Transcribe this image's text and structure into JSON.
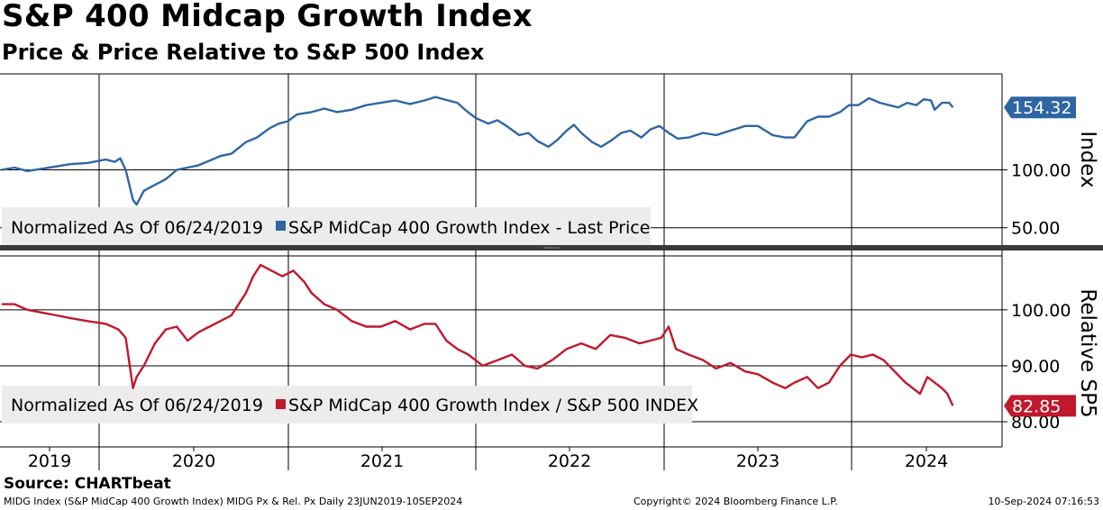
{
  "header": {
    "title": "S&P 400 Midcap Growth Index",
    "subtitle": "Price & Price Relative to S&P 500 Index"
  },
  "footer": {
    "source": "Source: CHARTbeat",
    "description": "MIDG Index (S&P MidCap 400 Growth Index) MIDG Px & Rel. Px  Daily 23JUN2019-10SEP2024",
    "copyright": "Copyright© 2024 Bloomberg Finance L.P.",
    "timestamp": "10-Sep-2024 07:16:53"
  },
  "colors": {
    "price": "#2e66a4",
    "relative": "#c0192c",
    "grid": "#000000",
    "legend_bg": "#ececec"
  },
  "chart_data": [
    {
      "type": "line",
      "title": "S&P 400 Midcap Growth Index",
      "ylabel": "Index",
      "legend_note": "Normalized As Of 06/24/2019",
      "last_value_label": "154.32",
      "ylim": [
        35,
        183
      ],
      "yticks": [
        50,
        100
      ],
      "ytick_labels": [
        "50.00",
        "100.00"
      ],
      "x_tick_labels": [
        "2019",
        "2020",
        "2021",
        "2022",
        "2023",
        "2024"
      ],
      "xlim": [
        2019.47,
        2024.97
      ],
      "series": [
        {
          "name": "S&P MidCap 400 Growth Index - Last Price",
          "points": [
            [
              2019.48,
              100
            ],
            [
              2019.55,
              102
            ],
            [
              2019.62,
              99
            ],
            [
              2019.7,
              101
            ],
            [
              2019.78,
              103
            ],
            [
              2019.86,
              105
            ],
            [
              2019.95,
              106
            ],
            [
              2020.05,
              109
            ],
            [
              2020.1,
              107
            ],
            [
              2020.13,
              110
            ],
            [
              2020.16,
              100
            ],
            [
              2020.2,
              74
            ],
            [
              2020.22,
              70
            ],
            [
              2020.26,
              82
            ],
            [
              2020.32,
              87
            ],
            [
              2020.38,
              92
            ],
            [
              2020.44,
              100
            ],
            [
              2020.5,
              102
            ],
            [
              2020.56,
              104
            ],
            [
              2020.62,
              108
            ],
            [
              2020.68,
              112
            ],
            [
              2020.74,
              114
            ],
            [
              2020.82,
              124
            ],
            [
              2020.88,
              128
            ],
            [
              2020.95,
              136
            ],
            [
              2021.0,
              140
            ],
            [
              2021.05,
              142
            ],
            [
              2021.1,
              148
            ],
            [
              2021.18,
              150
            ],
            [
              2021.25,
              153
            ],
            [
              2021.32,
              150
            ],
            [
              2021.4,
              152
            ],
            [
              2021.48,
              156
            ],
            [
              2021.56,
              158
            ],
            [
              2021.64,
              160
            ],
            [
              2021.72,
              157
            ],
            [
              2021.8,
              160
            ],
            [
              2021.86,
              163
            ],
            [
              2021.93,
              160
            ],
            [
              2021.98,
              158
            ],
            [
              2022.03,
              151
            ],
            [
              2022.08,
              145
            ],
            [
              2022.15,
              140
            ],
            [
              2022.2,
              143
            ],
            [
              2022.25,
              138
            ],
            [
              2022.32,
              130
            ],
            [
              2022.37,
              132
            ],
            [
              2022.42,
              125
            ],
            [
              2022.48,
              120
            ],
            [
              2022.53,
              126
            ],
            [
              2022.58,
              134
            ],
            [
              2022.62,
              139
            ],
            [
              2022.66,
              132
            ],
            [
              2022.72,
              124
            ],
            [
              2022.77,
              120
            ],
            [
              2022.83,
              126
            ],
            [
              2022.88,
              132
            ],
            [
              2022.93,
              134
            ],
            [
              2022.99,
              128
            ],
            [
              2023.04,
              135
            ],
            [
              2023.09,
              138
            ],
            [
              2023.14,
              132
            ],
            [
              2023.19,
              127
            ],
            [
              2023.25,
              128
            ],
            [
              2023.33,
              132
            ],
            [
              2023.4,
              130
            ],
            [
              2023.48,
              134
            ],
            [
              2023.56,
              138
            ],
            [
              2023.63,
              138
            ],
            [
              2023.71,
              130
            ],
            [
              2023.78,
              128
            ],
            [
              2023.83,
              128
            ],
            [
              2023.9,
              142
            ],
            [
              2023.96,
              146
            ],
            [
              2024.02,
              146
            ],
            [
              2024.08,
              150
            ],
            [
              2024.13,
              156
            ],
            [
              2024.18,
              156
            ],
            [
              2024.24,
              162
            ],
            [
              2024.3,
              158
            ],
            [
              2024.35,
              156
            ],
            [
              2024.4,
              154
            ],
            [
              2024.45,
              158
            ],
            [
              2024.5,
              156
            ],
            [
              2024.54,
              161
            ],
            [
              2024.58,
              160
            ],
            [
              2024.6,
              152
            ],
            [
              2024.64,
              158
            ],
            [
              2024.68,
              158
            ],
            [
              2024.7,
              154
            ]
          ]
        }
      ]
    },
    {
      "type": "line",
      "title": "Price Relative to S&P 500 Index",
      "ylabel": "Relative SP5",
      "legend_note": "Normalized As Of 06/24/2019",
      "last_value_label": "82.85",
      "ylim": [
        75.5,
        110.6
      ],
      "yticks": [
        80,
        90,
        100
      ],
      "ytick_labels": [
        "80.00",
        "90.00",
        "100.00"
      ],
      "x_tick_labels": [
        "2019",
        "2020",
        "2021",
        "2022",
        "2023",
        "2024"
      ],
      "xlim": [
        2019.47,
        2024.97
      ],
      "series": [
        {
          "name": "S&P MidCap 400 Growth Index / S&P 500 INDEX",
          "points": [
            [
              2019.48,
              101
            ],
            [
              2019.55,
              101
            ],
            [
              2019.62,
              100
            ],
            [
              2019.7,
              99.5
            ],
            [
              2019.78,
              99
            ],
            [
              2019.86,
              98.5
            ],
            [
              2019.95,
              98
            ],
            [
              2020.05,
              97.5
            ],
            [
              2020.12,
              96.5
            ],
            [
              2020.16,
              95
            ],
            [
              2020.2,
              86
            ],
            [
              2020.22,
              88
            ],
            [
              2020.26,
              90
            ],
            [
              2020.32,
              94
            ],
            [
              2020.38,
              96.5
            ],
            [
              2020.44,
              97
            ],
            [
              2020.5,
              94.5
            ],
            [
              2020.56,
              96
            ],
            [
              2020.62,
              97
            ],
            [
              2020.68,
              98
            ],
            [
              2020.74,
              99
            ],
            [
              2020.82,
              103
            ],
            [
              2020.86,
              106
            ],
            [
              2020.9,
              108
            ],
            [
              2020.96,
              107
            ],
            [
              2021.02,
              106
            ],
            [
              2021.08,
              107
            ],
            [
              2021.14,
              105
            ],
            [
              2021.18,
              103
            ],
            [
              2021.25,
              101
            ],
            [
              2021.32,
              100
            ],
            [
              2021.4,
              98
            ],
            [
              2021.48,
              97
            ],
            [
              2021.56,
              97
            ],
            [
              2021.64,
              98
            ],
            [
              2021.72,
              96.5
            ],
            [
              2021.8,
              97.5
            ],
            [
              2021.86,
              97.5
            ],
            [
              2021.92,
              94.5
            ],
            [
              2021.98,
              93
            ],
            [
              2022.04,
              92
            ],
            [
              2022.12,
              90
            ],
            [
              2022.2,
              91
            ],
            [
              2022.28,
              92
            ],
            [
              2022.35,
              90
            ],
            [
              2022.42,
              89.5
            ],
            [
              2022.5,
              91
            ],
            [
              2022.58,
              93
            ],
            [
              2022.66,
              94
            ],
            [
              2022.74,
              93
            ],
            [
              2022.82,
              95.5
            ],
            [
              2022.9,
              95
            ],
            [
              2022.98,
              94
            ],
            [
              2023.04,
              94.5
            ],
            [
              2023.1,
              95
            ],
            [
              2023.14,
              97
            ],
            [
              2023.18,
              93
            ],
            [
              2023.25,
              92
            ],
            [
              2023.33,
              91
            ],
            [
              2023.4,
              89.5
            ],
            [
              2023.48,
              90.5
            ],
            [
              2023.56,
              89
            ],
            [
              2023.63,
              88.5
            ],
            [
              2023.71,
              87
            ],
            [
              2023.78,
              86
            ],
            [
              2023.83,
              87
            ],
            [
              2023.9,
              88
            ],
            [
              2023.96,
              86
            ],
            [
              2024.02,
              87
            ],
            [
              2024.08,
              90
            ],
            [
              2024.14,
              92
            ],
            [
              2024.2,
              91.5
            ],
            [
              2024.26,
              92
            ],
            [
              2024.32,
              91
            ],
            [
              2024.38,
              89
            ],
            [
              2024.44,
              87
            ],
            [
              2024.48,
              86
            ],
            [
              2024.52,
              85
            ],
            [
              2024.56,
              88
            ],
            [
              2024.6,
              87
            ],
            [
              2024.64,
              86
            ],
            [
              2024.67,
              85
            ],
            [
              2024.7,
              82.85
            ]
          ]
        }
      ]
    }
  ]
}
